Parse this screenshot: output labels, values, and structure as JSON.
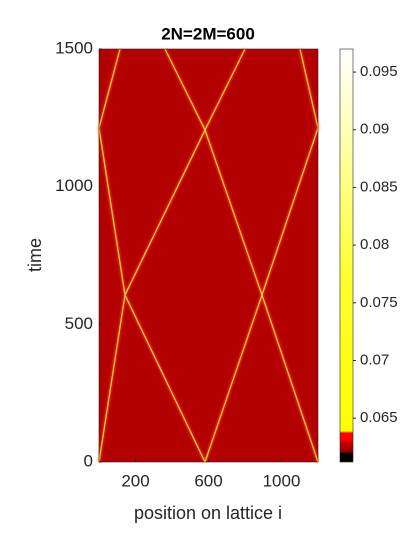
{
  "chart_data": {
    "type": "heatmap",
    "title": "2N=2M=600",
    "xlabel": "position on lattice i",
    "ylabel": "time",
    "xlim": [
      0,
      1200
    ],
    "xticks": [
      200,
      600,
      1000
    ],
    "ylim": [
      0,
      1500
    ],
    "yticks": [
      0,
      500,
      1000,
      1500
    ],
    "colorbar": {
      "lim": [
        0.0612,
        0.097
      ],
      "ticks": [
        0.065,
        0.07,
        0.075,
        0.08,
        0.085,
        0.09,
        0.095
      ]
    }
  }
}
